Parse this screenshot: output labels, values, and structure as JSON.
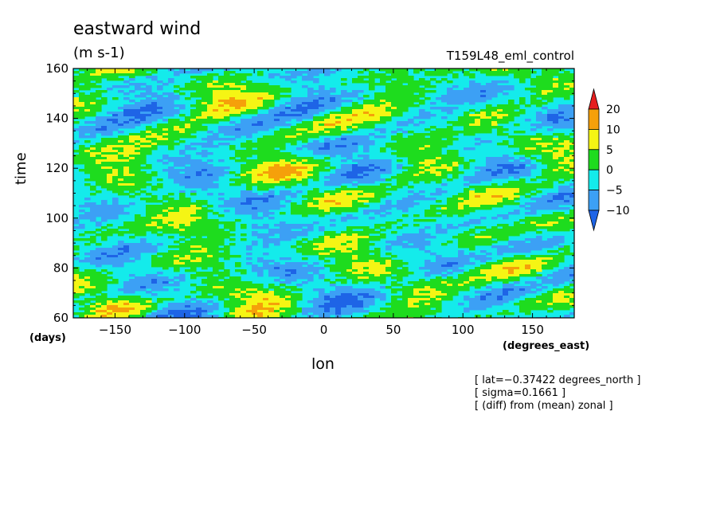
{
  "chart_data": {
    "type": "heatmap",
    "title": "eastward wind",
    "units": "(m s-1)",
    "run_name": "T159L48_eml_control",
    "xlabel": "lon",
    "x_units": "(degrees_east)",
    "ylabel": "time",
    "y_units": "(days)",
    "xlim": [
      -180,
      180
    ],
    "ylim": [
      60,
      160
    ],
    "x_ticks": [
      -150,
      -100,
      -50,
      0,
      50,
      100,
      150
    ],
    "y_ticks": [
      60,
      80,
      100,
      120,
      140,
      160
    ],
    "colorbar": {
      "levels": [
        -10,
        -5,
        0,
        5,
        10,
        20
      ],
      "labels": [
        "20",
        "10",
        "5",
        "0",
        "−5",
        "−10"
      ],
      "colors": [
        "#1e64e6",
        "#3ca0f5",
        "#14ebeb",
        "#1edc1e",
        "#f5f514",
        "#f5a00a",
        "#e61e1e"
      ]
    },
    "annotations": [
      "[ lat=−0.37422 degrees_north ]",
      "[ sigma=0.1661 ]",
      "[ (diff) from (mean) zonal ]"
    ]
  }
}
